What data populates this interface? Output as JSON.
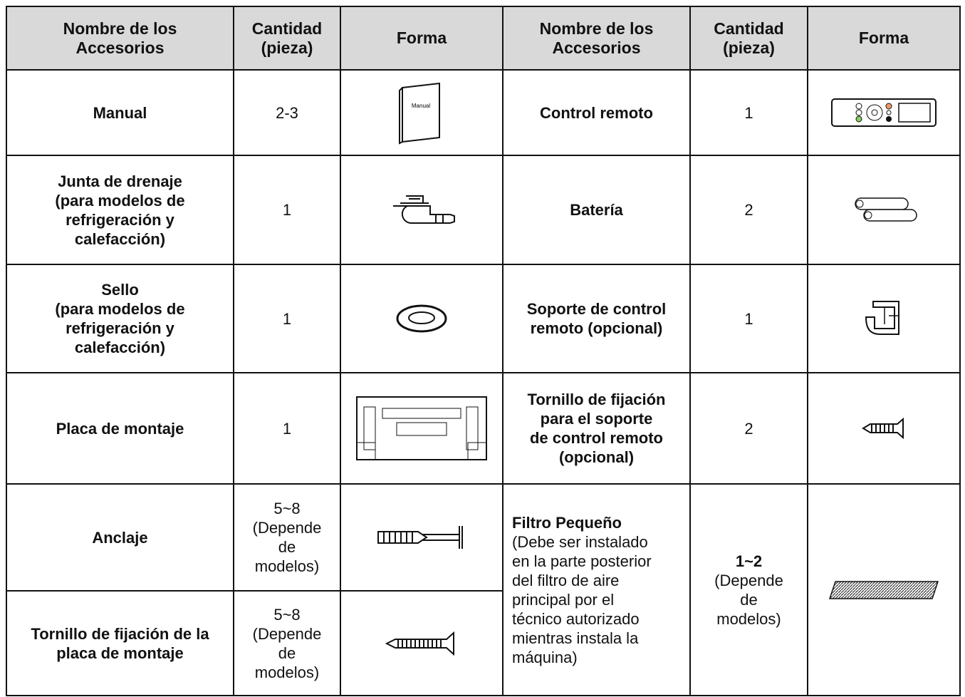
{
  "table": {
    "header": [
      [
        "Nombre de los",
        "Accesorios"
      ],
      [
        "Cantidad",
        "(pieza)"
      ],
      [
        "Forma"
      ],
      [
        "Nombre de los",
        "Accesorios"
      ],
      [
        "Cantidad",
        "(pieza)"
      ],
      [
        "Forma"
      ]
    ],
    "rows": [
      [
        [
          "Manual"
        ],
        [
          "2-3"
        ],
        [
          "Control remoto"
        ],
        [
          "1"
        ]
      ],
      [
        [
          "Junta de drenaje",
          "(para modelos de",
          "refrigeración y",
          "calefacción)"
        ],
        [
          "1"
        ],
        [
          "Batería"
        ],
        [
          "2"
        ]
      ],
      [
        [
          "Sello",
          "(para modelos de",
          "refrigeración y",
          "calefacción)"
        ],
        [
          "1"
        ],
        [
          "Soporte de control",
          "remoto (opcional)"
        ],
        [
          "1"
        ]
      ],
      [
        [
          "Placa de montaje"
        ],
        [
          "1"
        ],
        [
          "Tornillo de fijación",
          "para el soporte",
          "de control remoto",
          "(opcional)"
        ],
        [
          "2"
        ]
      ],
      [
        [
          "Anclaje"
        ],
        [
          "5~8",
          "(Depende",
          "de",
          "modelos)"
        ],
        [
          "Filtro Pequeño",
          "(Debe ser instalado",
          "en la parte posterior",
          "del filtro de aire",
          "principal por el",
          "técnico autorizado",
          "mientras instala la",
          "máquina)"
        ],
        [
          "1~2",
          "(Depende",
          "de",
          "modelos)"
        ]
      ],
      [
        [
          "Tornillo de fijación de la",
          "placa de montaje"
        ],
        [
          "5~8",
          "(Depende",
          "de",
          "modelos)"
        ]
      ]
    ],
    "manual_icon_text": "Manual"
  }
}
